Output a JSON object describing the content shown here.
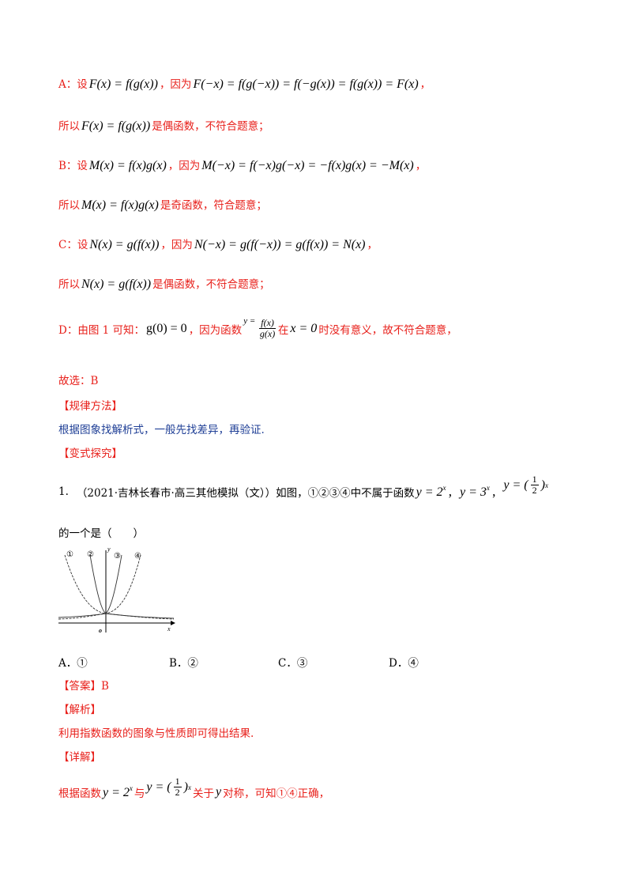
{
  "lineA": {
    "label": "A：设",
    "f1": "F(x) = f(g(x))",
    "mid": "，因为",
    "f2": "F(−x) = f(g(−x)) = f(−g(x)) = f(g(x)) = F(x)",
    "end": "，"
  },
  "lineA2": {
    "pre": "所以",
    "f": "F(x) = f(g(x))",
    "post": "是偶函数，不符合题意；"
  },
  "lineB": {
    "label": "B：设",
    "f1": "M(x) = f(x)g(x)",
    "mid": "，因为",
    "f2": "M(−x) = f(−x)g(−x) = −f(x)g(x) = −M(x)",
    "end": "，"
  },
  "lineB2": {
    "pre": "所以",
    "f": "M(x) = f(x)g(x)",
    "post": "是奇函数，符合题意；"
  },
  "lineC": {
    "label": "C：设",
    "f1": "N(x) = g(f(x))",
    "mid": "，因为",
    "f2": "N(−x) = g(f(−x)) = g(f(x)) = N(x)",
    "end": "，"
  },
  "lineC2": {
    "pre": "所以",
    "f": "N(x) = g(f(x))",
    "post": "是偶函数，不符合题意；"
  },
  "lineD": {
    "label": "D：由图 1 可知：",
    "f1": "g(0) = 0",
    "mid": "，因为函数",
    "y": "y =",
    "num": "f(x)",
    "den": "g(x)",
    "in": "在",
    "cond": "x = 0",
    "post": "时没有意义，故不符合题意，"
  },
  "answer1": "故选：B",
  "method_head": "【规律方法】",
  "method_text": "根据图象找解析式，一般先找差异，再验证.",
  "variant_head": "【变式探究】",
  "q1": {
    "num": "1.",
    "text": "（2021·吉林长春市·高三其他模拟（文））如图，①②③④中不属于函数",
    "f1": "y = 2",
    "sep1": "，",
    "f2": "y = 3",
    "sep2": "，",
    "f3a": "y = (",
    "f3num": "1",
    "f3den": "2",
    "f3b": ")",
    "exp": "x",
    "line2": "的一个是（　　）"
  },
  "graph": {
    "labels": [
      "①",
      "②",
      "③",
      "④"
    ],
    "y_axis": "y",
    "x_axis": "x",
    "origin": "o"
  },
  "options": [
    "A．①",
    "B．②",
    "C．③",
    "D．④"
  ],
  "answer_head": "【答案】B",
  "analysis_head": "【解析】",
  "analysis_text": "利用指数函数的图象与性质即可得出结果.",
  "detail_head": "【详解】",
  "detail": {
    "pre": "根据函数",
    "f1": "y = 2",
    "mid": "与",
    "f2a": "y = (",
    "f2num": "1",
    "f2den": "2",
    "f2b": ")",
    "exp": "x",
    "post1": "关于",
    "yv": "y",
    "post2": "对称，可知①④正确，"
  }
}
